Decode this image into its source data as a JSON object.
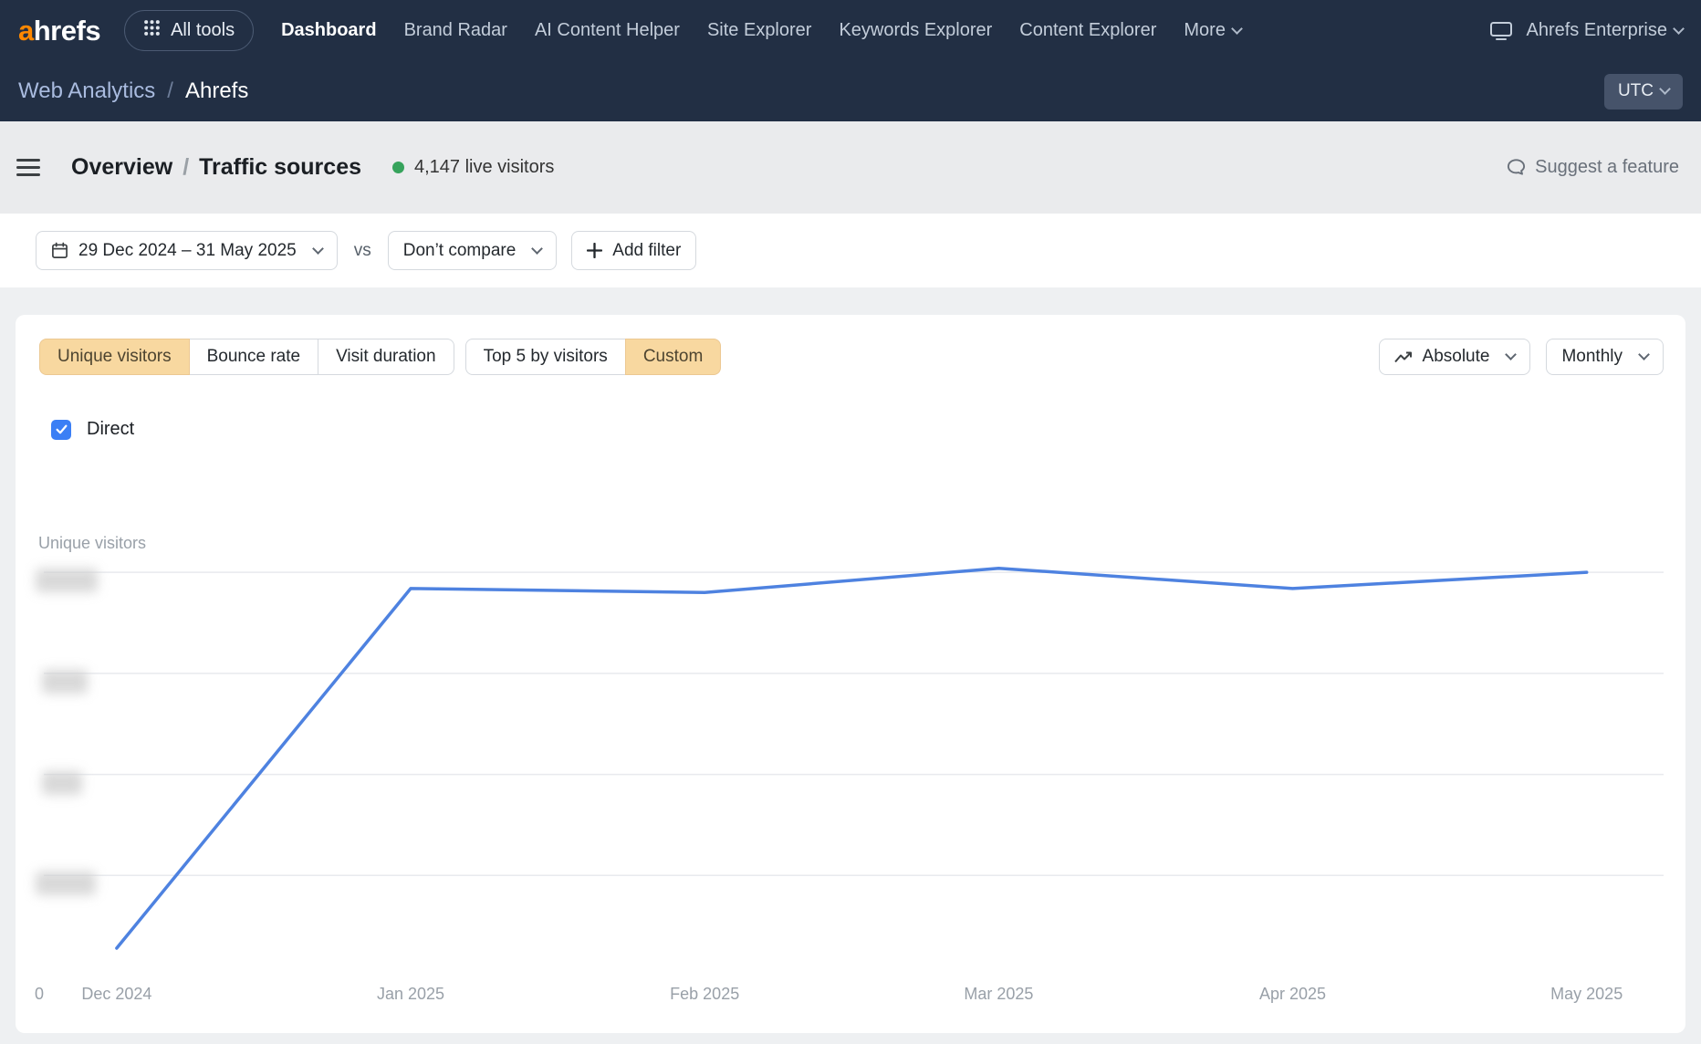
{
  "colors": {
    "header_bg": "#222f44",
    "accent_orange": "#ff8800",
    "active_tab_bg": "#f8d8a0",
    "line_blue": "#4e82e0",
    "checkbox_blue": "#3b7ff5",
    "live_green": "#36a35c"
  },
  "top_nav": {
    "logo_accent": "a",
    "logo_rest": "hrefs",
    "all_tools_label": "All tools",
    "items": [
      {
        "label": "Dashboard",
        "active": true
      },
      {
        "label": "Brand Radar",
        "active": false
      },
      {
        "label": "AI Content Helper",
        "active": false
      },
      {
        "label": "Site Explorer",
        "active": false
      },
      {
        "label": "Keywords Explorer",
        "active": false
      },
      {
        "label": "Content Explorer",
        "active": false
      },
      {
        "label": "More",
        "active": false
      }
    ],
    "enterprise_label": "Ahrefs Enterprise"
  },
  "breadcrumb_bar": {
    "section": "Web Analytics",
    "separator": "/",
    "project": "Ahrefs",
    "timezone": "UTC"
  },
  "title_bar": {
    "title_primary": "Overview",
    "separator": "/",
    "title_secondary": "Traffic sources",
    "live_visitors": "4,147 live visitors",
    "suggest_feature_label": "Suggest a feature"
  },
  "filter_bar": {
    "date_range": "29 Dec 2024 – 31 May 2025",
    "vs_label": "vs",
    "compare_label": "Don’t compare",
    "add_filter_label": "Add filter"
  },
  "metric_tabs": {
    "group1": [
      {
        "label": "Unique visitors",
        "active": true
      },
      {
        "label": "Bounce rate",
        "active": false
      },
      {
        "label": "Visit duration",
        "active": false
      }
    ],
    "group2": [
      {
        "label": "Top 5 by visitors",
        "active": false
      },
      {
        "label": "Custom",
        "active": true
      }
    ],
    "mode_label": "Absolute",
    "granularity_label": "Monthly"
  },
  "legend": {
    "direct_label": "Direct",
    "checked": true
  },
  "chart_data": {
    "type": "line",
    "title": "",
    "y_axis_title": "Unique visitors",
    "x": [
      "Dec 2024",
      "Jan 2025",
      "Feb 2025",
      "Mar 2025",
      "Apr 2025",
      "May 2025"
    ],
    "series": [
      {
        "name": "Direct",
        "color": "#4e82e0",
        "values": [
          7,
          96,
          95,
          101,
          96,
          100
        ]
      }
    ],
    "ylim": [
      0,
      112
    ],
    "gridline_values": [
      25,
      50,
      75,
      100
    ],
    "y_tick_labels": "redacted (blurred in source image)",
    "y_zero_label": "0",
    "grid": true,
    "legend_position": "top-left checkbox",
    "mode": "Absolute",
    "granularity": "Monthly",
    "layout": {
      "x_first_fraction": 0.045,
      "x_step_fraction": 0.1815
    }
  }
}
